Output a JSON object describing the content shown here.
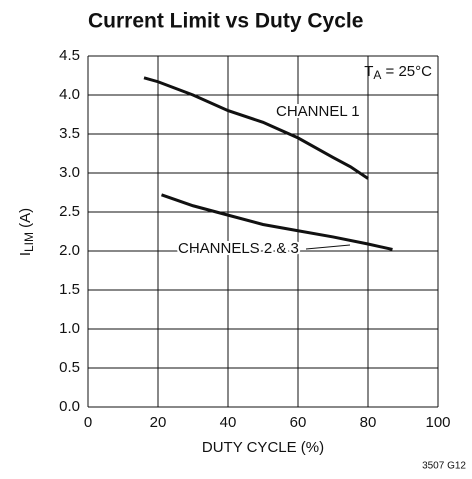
{
  "chart_data": {
    "type": "line",
    "title": "Current Limit vs Duty Cycle",
    "xlabel": "DUTY CYCLE (%)",
    "ylabel": {
      "main": "I",
      "sub": "LIM",
      "rest": " (A)"
    },
    "condition": {
      "main": "T",
      "sub": "A",
      "rest": " = 25°C"
    },
    "figure_id": "3507 G12",
    "xlim": [
      0,
      100
    ],
    "xticks": [
      0,
      20,
      40,
      60,
      80,
      100
    ],
    "ylim": [
      0,
      4.5
    ],
    "yticks": [
      {
        "value": 0,
        "label": "0.0"
      },
      0.5,
      {
        "value": 1,
        "label": "1.0"
      },
      1.5,
      {
        "value": 2,
        "label": "2.0"
      },
      2.5,
      {
        "value": 3,
        "label": "3.0"
      },
      3.5,
      {
        "value": 4,
        "label": "4.0"
      },
      4.5
    ],
    "grid": true,
    "series": [
      {
        "name": "CHANNEL 1",
        "color": "#111111",
        "x": [
          16,
          20,
          30,
          40,
          50,
          60,
          70,
          75,
          80
        ],
        "values": [
          4.22,
          4.17,
          4.0,
          3.8,
          3.65,
          3.45,
          3.2,
          3.08,
          2.93
        ]
      },
      {
        "name": "CHANNELS 2 & 3",
        "color": "#111111",
        "x": [
          21,
          30,
          40,
          50,
          60,
          70,
          80,
          87
        ],
        "values": [
          2.72,
          2.58,
          2.46,
          2.34,
          2.26,
          2.18,
          2.09,
          2.02
        ]
      }
    ]
  }
}
